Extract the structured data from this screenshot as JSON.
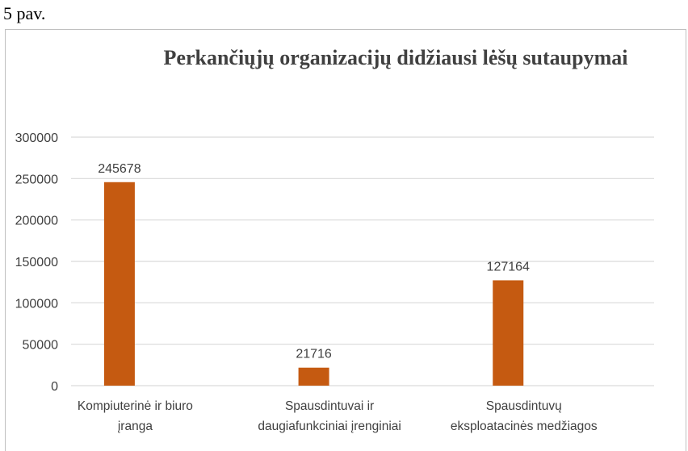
{
  "caption": "5 pav.",
  "chart_data": {
    "type": "bar",
    "title": "Perkančiųjų organizacijų didžiausi lėšų sutaupymai",
    "categories": [
      [
        "Kompiuterinė ir biuro",
        "įranga"
      ],
      [
        "Spausdintuvai ir",
        "daugiafunkciniai įrenginiai"
      ],
      [
        "Spausdintuvų",
        "eksploatacinės medžiagos"
      ]
    ],
    "values": [
      245678,
      21716,
      127164
    ],
    "ylim": [
      0,
      300000
    ],
    "yticks": [
      0,
      50000,
      100000,
      150000,
      200000,
      250000,
      300000
    ],
    "grid": true,
    "bar_color": "#c55a11",
    "grid_color": "#d9d9d9",
    "xlabel": "",
    "ylabel": ""
  }
}
